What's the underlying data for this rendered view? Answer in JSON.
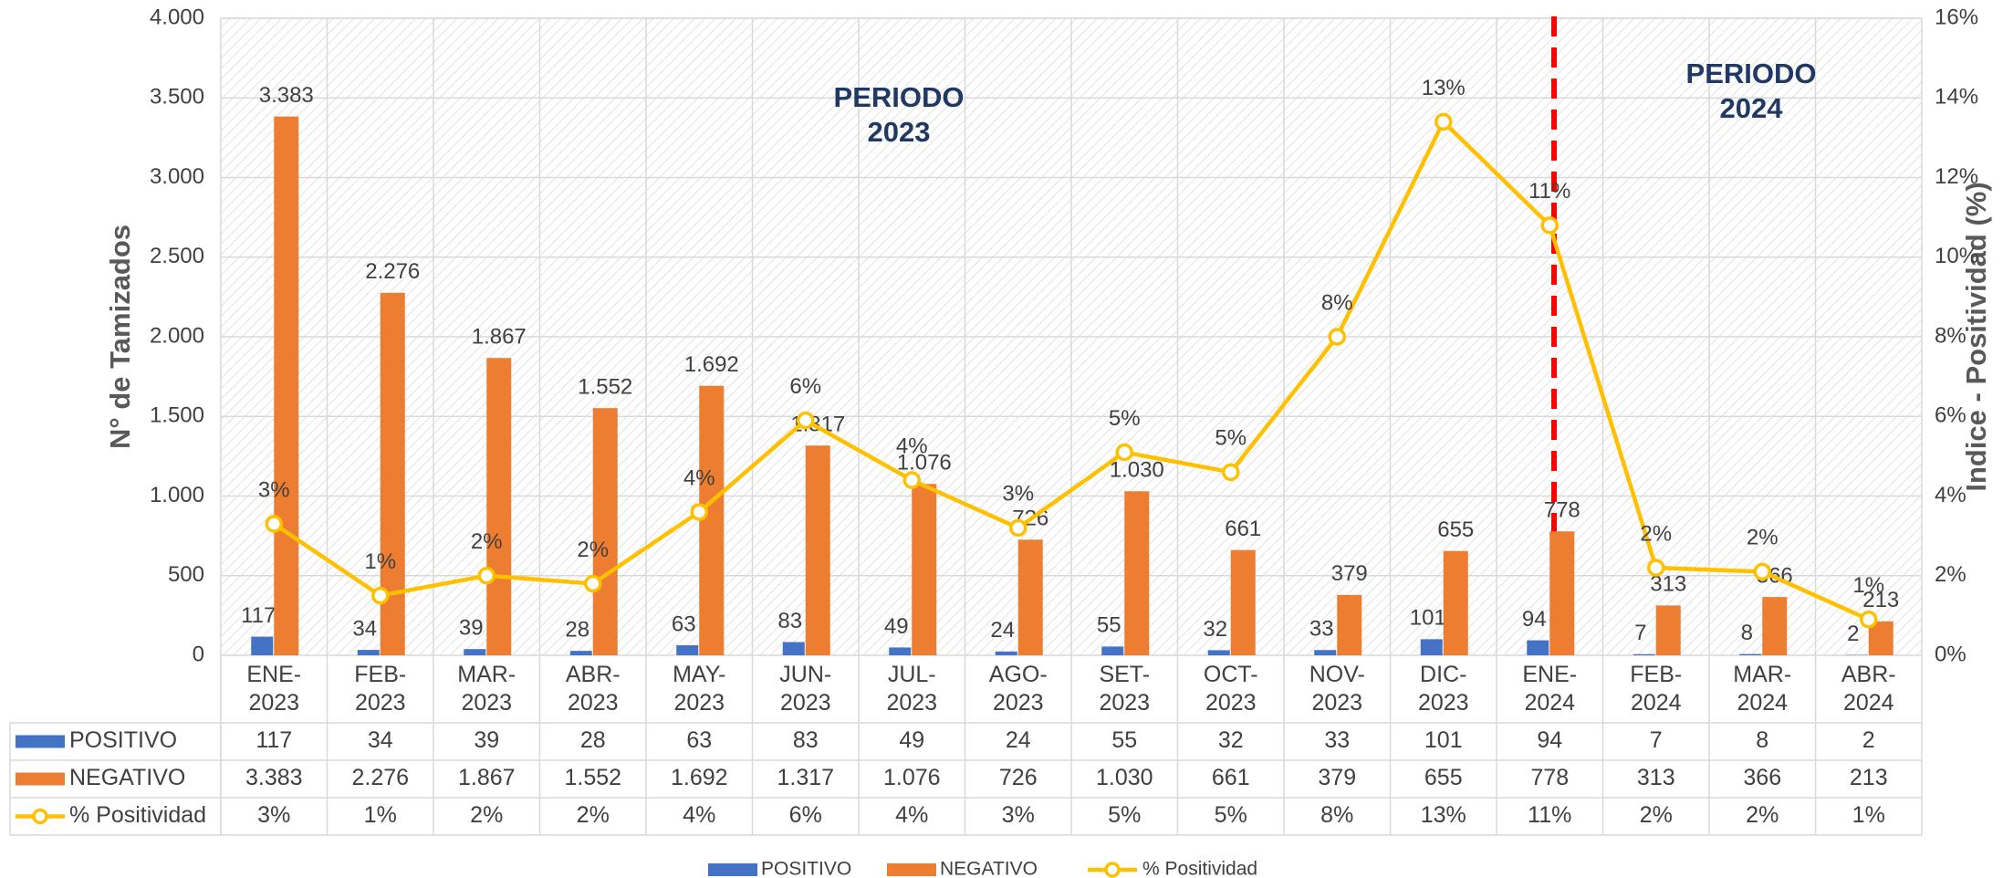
{
  "chart_data": {
    "type": "bar-line",
    "categories": [
      "ENE-2023",
      "FEB-2023",
      "MAR-2023",
      "ABR-2023",
      "MAY-2023",
      "JUN-2023",
      "JUL-2023",
      "AGO-2023",
      "SET-2023",
      "OCT-2023",
      "NOV-2023",
      "DIC-2023",
      "ENE-2024",
      "FEB-2024",
      "MAR-2024",
      "ABR-2024"
    ],
    "series": [
      {
        "name": "POSITIVO",
        "color": "#4472c4",
        "type": "bar",
        "values": [
          117,
          34,
          39,
          28,
          63,
          83,
          49,
          24,
          55,
          32,
          33,
          101,
          94,
          7,
          8,
          2
        ]
      },
      {
        "name": "NEGATIVO",
        "color": "#ed7d31",
        "type": "bar",
        "values": [
          3383,
          2276,
          1867,
          1552,
          1692,
          1317,
          1076,
          726,
          1030,
          661,
          379,
          655,
          778,
          313,
          366,
          213
        ],
        "value_labels": [
          "3.383",
          "2.276",
          "1.867",
          "1.552",
          "1.692",
          "1.317",
          "1.076",
          "726",
          "1.030",
          "661",
          "379",
          "655",
          "778",
          "313",
          "366",
          "213"
        ]
      },
      {
        "name": "% Positividad",
        "color": "#ffc000",
        "type": "line",
        "axis": "y2",
        "values": [
          3.3,
          1.5,
          2.0,
          1.8,
          3.6,
          5.9,
          4.4,
          3.2,
          5.1,
          4.6,
          8.0,
          13.4,
          10.8,
          2.2,
          2.1,
          0.9
        ],
        "value_labels": [
          "3%",
          "1%",
          "2%",
          "2%",
          "4%",
          "6%",
          "4%",
          "3%",
          "5%",
          "5%",
          "8%",
          "13%",
          "11%",
          "2%",
          "2%",
          "1%"
        ]
      }
    ],
    "y_label": "N° de Tamizados",
    "y2_label": "Indice - Positividad (%)",
    "ylim": [
      0,
      4000
    ],
    "yticks": [
      {
        "value": 0,
        "label": "0"
      },
      {
        "value": 500,
        "label": "500"
      },
      {
        "value": 1000,
        "label": "1.000"
      },
      {
        "value": 1500,
        "label": "1.500"
      },
      {
        "value": 2000,
        "label": "2.000"
      },
      {
        "value": 2500,
        "label": "2.500"
      },
      {
        "value": 3000,
        "label": "3.000"
      },
      {
        "value": 3500,
        "label": "3.500"
      },
      {
        "value": 4000,
        "label": "4.000"
      }
    ],
    "y2lim": [
      0,
      16
    ],
    "y2ticks": [
      {
        "value": 0,
        "label": "0%"
      },
      {
        "value": 2,
        "label": "2%"
      },
      {
        "value": 4,
        "label": "4%"
      },
      {
        "value": 6,
        "label": "6%"
      },
      {
        "value": 8,
        "label": "8%"
      },
      {
        "value": 10,
        "label": "10%"
      },
      {
        "value": 12,
        "label": "12%"
      },
      {
        "value": 14,
        "label": "14%"
      },
      {
        "value": 16,
        "label": "16%"
      }
    ],
    "annotations": [
      "PERIODO 2023",
      "PERIODO 2024"
    ],
    "grid": true,
    "data_table": true,
    "legend": "bottom"
  }
}
